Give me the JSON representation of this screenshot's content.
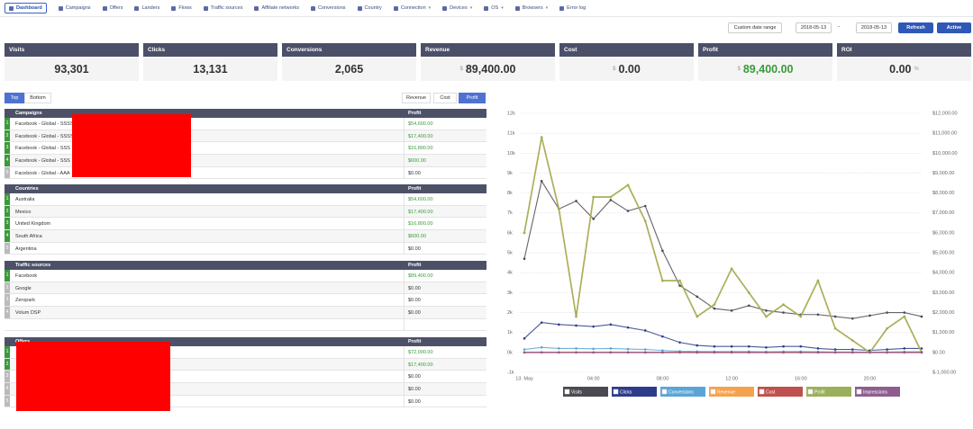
{
  "nav": {
    "items": [
      "Dashboard",
      "Campaigns",
      "Offers",
      "Landers",
      "Flows",
      "Traffic sources",
      "Affiliate networks",
      "Conversions",
      "Country",
      "Connection",
      "Devices",
      "OS",
      "Browsers",
      "Error log"
    ]
  },
  "toolbar": {
    "range": "Custom date range",
    "from": "2018-05-13",
    "separator": "-",
    "to": "2018-05-13",
    "refresh": "Refresh",
    "status": "Active"
  },
  "stats": [
    {
      "label": "Visits",
      "value": "93,301"
    },
    {
      "label": "Clicks",
      "value": "13,131"
    },
    {
      "label": "Conversions",
      "value": "2,065"
    },
    {
      "label": "Revenue",
      "prefix": "$",
      "value": "89,400.00"
    },
    {
      "label": "Cost",
      "prefix": "$",
      "value": "0.00"
    },
    {
      "label": "Profit",
      "prefix": "$",
      "value": "89,400.00"
    },
    {
      "label": "ROI",
      "value": "0.00",
      "suffix": "%"
    }
  ],
  "tabs": {
    "order": [
      "Top",
      "Bottom"
    ],
    "metric": [
      "Revenue",
      "Cost",
      "Profit"
    ]
  },
  "tables": [
    {
      "title": "Campaigns",
      "column": "Profit",
      "rows": [
        {
          "rank": "1",
          "name": "Facebook - Global - SSSS",
          "profit": "$54,600.00"
        },
        {
          "rank": "2",
          "name": "Facebook - Global - SSSS",
          "profit": "$17,400.00"
        },
        {
          "rank": "3",
          "name": "Facebook - Global - SSS",
          "profit": "$16,800.00"
        },
        {
          "rank": "4",
          "name": "Facebook - Global - SSS",
          "profit": "$600.00"
        },
        {
          "rank": "5",
          "name": "Facebook - Global - AAA",
          "profit": "$0.00"
        }
      ]
    },
    {
      "title": "Countries",
      "column": "Profit",
      "rows": [
        {
          "rank": "1",
          "name": "Australia",
          "profit": "$54,600.00"
        },
        {
          "rank": "2",
          "name": "Mexico",
          "profit": "$17,400.00"
        },
        {
          "rank": "3",
          "name": "United Kingdom",
          "profit": "$16,800.00"
        },
        {
          "rank": "4",
          "name": "South Africa",
          "profit": "$600.00"
        },
        {
          "rank": "5",
          "name": "Argentina",
          "profit": "$0.00"
        }
      ]
    },
    {
      "title": "Traffic sources",
      "column": "Profit",
      "rows": [
        {
          "rank": "1",
          "name": "Facebook",
          "profit": "$89,400.00"
        },
        {
          "rank": "2",
          "name": "Google",
          "profit": "$0.00"
        },
        {
          "rank": "3",
          "name": "Zeropark",
          "profit": "$0.00"
        },
        {
          "rank": "4",
          "name": "Volum DSP",
          "profit": "$0.00"
        }
      ]
    },
    {
      "title": "Offers",
      "column": "Profit",
      "rows": [
        {
          "rank": "1",
          "profit": "$72,000.00"
        },
        {
          "rank": "2",
          "profit": "$17,400.00"
        },
        {
          "rank": "3",
          "profit": "$0.00"
        },
        {
          "rank": "4",
          "profit": "$0.00"
        },
        {
          "rank": "5",
          "profit": "$0.00"
        }
      ]
    }
  ],
  "chart_data": {
    "type": "line",
    "categories": [
      "13. May",
      null,
      null,
      null,
      "04:00",
      null,
      null,
      null,
      "08:00",
      null,
      null,
      null,
      "12:00",
      null,
      null,
      null,
      "16:00",
      null,
      null,
      null,
      "20:00",
      null,
      null,
      null
    ],
    "series": [
      {
        "name": "Visits",
        "color": "#4a4a50",
        "values": [
          4700,
          8600,
          7200,
          7600,
          6700,
          7650,
          7100,
          7350,
          5100,
          3350,
          2800,
          2200,
          2100,
          2350,
          2100,
          2000,
          1900,
          1900,
          1800,
          1700,
          1850,
          2000,
          2000,
          1800
        ]
      },
      {
        "name": "Clicks",
        "color": "#2d3c8a",
        "values": [
          700,
          1500,
          1400,
          1350,
          1300,
          1400,
          1250,
          1100,
          800,
          500,
          350,
          300,
          300,
          300,
          250,
          300,
          300,
          200,
          150,
          150,
          100,
          150,
          200,
          200
        ]
      },
      {
        "name": "Conversions",
        "color": "#5aa5d6",
        "values": [
          150,
          250,
          200,
          200,
          180,
          200,
          170,
          150,
          100,
          60,
          50,
          40,
          40,
          40,
          30,
          40,
          40,
          30,
          20,
          20,
          10,
          20,
          30,
          30
        ]
      },
      {
        "name": "Revenue",
        "color": "#f4a24e",
        "axis": "y2",
        "values": [
          6000,
          10800,
          7200,
          1800,
          7800,
          7800,
          8400,
          6600,
          3600,
          3600,
          1800,
          2400,
          4200,
          3000,
          1800,
          2400,
          1800,
          3600,
          1200,
          600,
          0,
          1200,
          1800,
          0
        ]
      },
      {
        "name": "Cost",
        "color": "#c0504d",
        "axis": "y2",
        "values": [
          0,
          0,
          0,
          0,
          0,
          0,
          0,
          0,
          0,
          0,
          0,
          0,
          0,
          0,
          0,
          0,
          0,
          0,
          0,
          0,
          0,
          0,
          0,
          0
        ]
      },
      {
        "name": "Profit",
        "color": "#9bb05a",
        "axis": "y2",
        "values": [
          6000,
          10800,
          7200,
          1800,
          7800,
          7800,
          8400,
          6600,
          3600,
          3600,
          1800,
          2400,
          4200,
          3000,
          1800,
          2400,
          1800,
          3600,
          1200,
          600,
          0,
          1200,
          1800,
          0
        ]
      },
      {
        "name": "Impressions",
        "color": "#8e5d8f",
        "values": [
          0,
          0,
          0,
          0,
          0,
          0,
          0,
          0,
          0,
          0,
          0,
          0,
          0,
          0,
          0,
          0,
          0,
          0,
          0,
          0,
          0,
          0,
          0,
          0
        ]
      }
    ],
    "ylim": [
      -1000,
      12000
    ],
    "yticks": [
      {
        "value": -1000,
        "label": "-1k"
      },
      {
        "value": 0,
        "label": "0k"
      },
      {
        "value": 1000,
        "label": "1k"
      },
      {
        "value": 2000,
        "label": "2k"
      },
      {
        "value": 3000,
        "label": "3k"
      },
      {
        "value": 4000,
        "label": "4k"
      },
      {
        "value": 5000,
        "label": "5k"
      },
      {
        "value": 6000,
        "label": "6k"
      },
      {
        "value": 7000,
        "label": "7k"
      },
      {
        "value": 8000,
        "label": "8k"
      },
      {
        "value": 9000,
        "label": "9k"
      },
      {
        "value": 10000,
        "label": "10k"
      },
      {
        "value": 11000,
        "label": "11k"
      },
      {
        "value": 12000,
        "label": "12k"
      }
    ],
    "y2lim": [
      -1000,
      12000
    ],
    "y2ticks": [
      {
        "value": -1000,
        "label": "$-1,000.00"
      },
      {
        "value": 0,
        "label": "$0.00"
      },
      {
        "value": 1000,
        "label": "$1,000.00"
      },
      {
        "value": 2000,
        "label": "$2,000.00"
      },
      {
        "value": 3000,
        "label": "$3,000.00"
      },
      {
        "value": 4000,
        "label": "$4,000.00"
      },
      {
        "value": 5000,
        "label": "$5,000.00"
      },
      {
        "value": 6000,
        "label": "$6,000.00"
      },
      {
        "value": 7000,
        "label": "$7,000.00"
      },
      {
        "value": 8000,
        "label": "$8,000.00"
      },
      {
        "value": 9000,
        "label": "$9,000.00"
      },
      {
        "value": 10000,
        "label": "$10,000.00"
      },
      {
        "value": 11000,
        "label": "$11,000.00"
      },
      {
        "value": 12000,
        "label": "$12,000.00"
      }
    ],
    "grid": true,
    "legend": "bottom"
  }
}
